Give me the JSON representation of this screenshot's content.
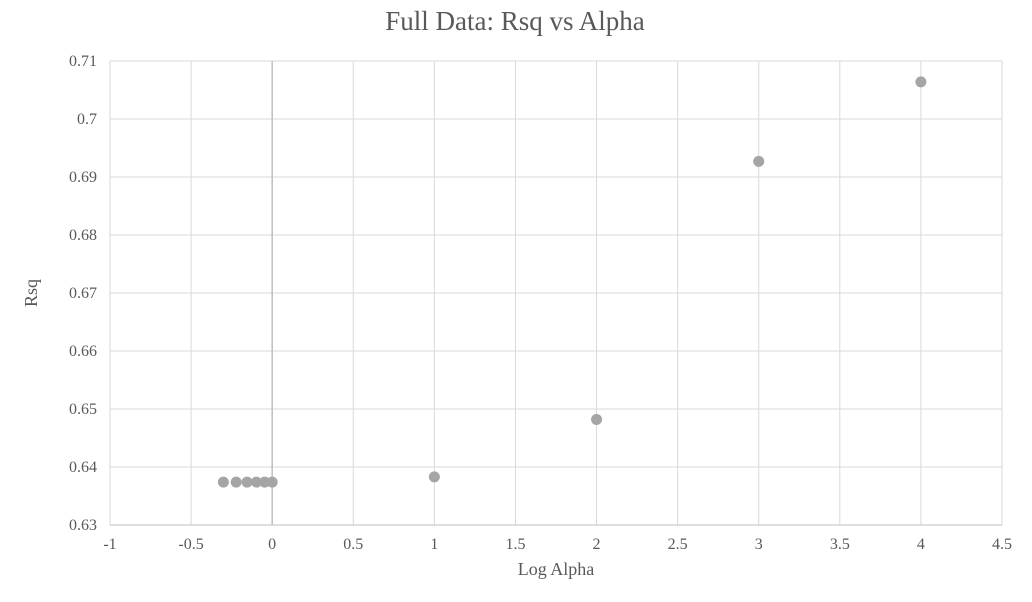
{
  "chart_data": {
    "type": "scatter",
    "title": "Full Data: Rsq vs Alpha",
    "xlabel": "Log Alpha",
    "ylabel": "Rsq",
    "xlim": [
      -1,
      4.5
    ],
    "ylim": [
      0.63,
      0.71
    ],
    "x_ticks": [
      "-1",
      "-0.5",
      "0",
      "0.5",
      "1",
      "1.5",
      "2",
      "2.5",
      "3",
      "3.5",
      "4",
      "4.5"
    ],
    "y_ticks": [
      "0.63",
      "0.64",
      "0.65",
      "0.66",
      "0.67",
      "0.68",
      "0.69",
      "0.7",
      "0.71"
    ],
    "grid": true,
    "legend": "none",
    "marker_color": "#a5a5a5",
    "grid_color": "#d9d9d9",
    "text_color": "#595959",
    "series": [
      {
        "x": [
          -0.301,
          -0.222,
          -0.155,
          -0.097,
          -0.046,
          0
        ],
        "y": [
          0.6374,
          0.6374,
          0.6374,
          0.6374,
          0.6374,
          0.6374
        ]
      },
      {
        "x": [
          1,
          2,
          3,
          4
        ],
        "y": [
          0.6383,
          0.6482,
          0.6927,
          0.7064
        ]
      }
    ]
  }
}
